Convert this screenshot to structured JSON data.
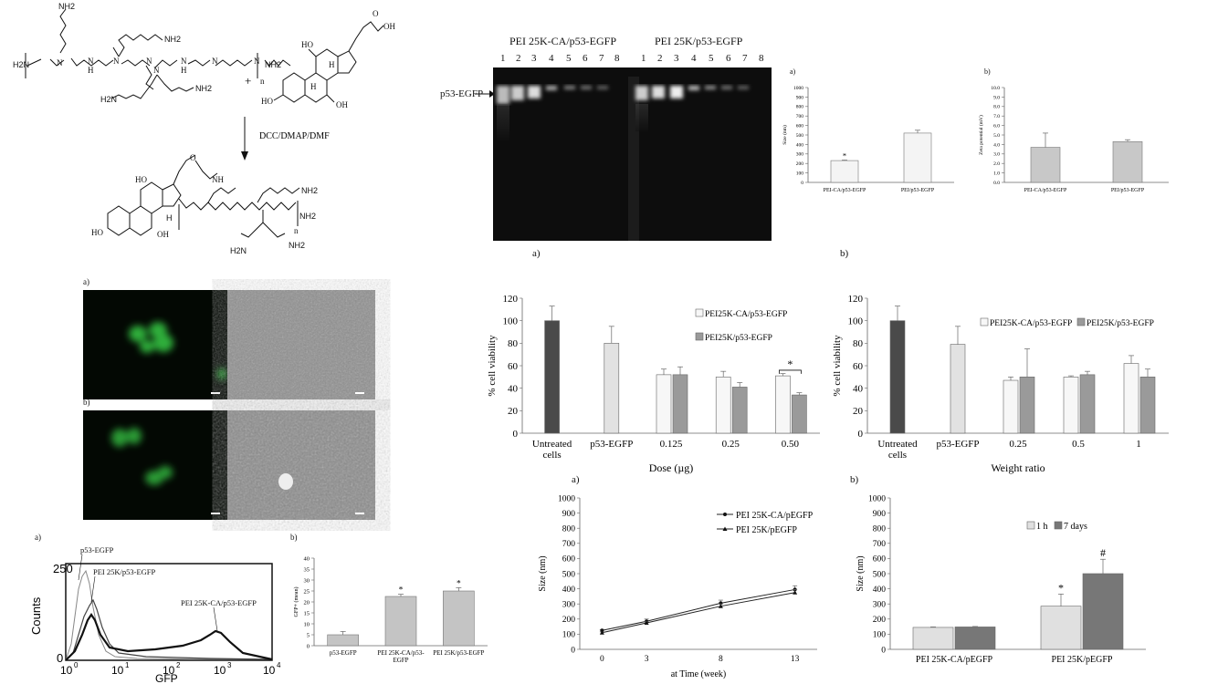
{
  "scheme": {
    "reagents": "DCC/DMAP/DMF",
    "plus": "+",
    "n": "n",
    "amine_top": "NH2",
    "amine_right": "NH2",
    "amine_left": "H2N",
    "acid": "OH",
    "hydroxyl": "HO",
    "nh": "NH"
  },
  "gel": {
    "label_group1": "PEI 25K-CA/p53-EGFP",
    "label_group2": "PEI 25K/p53-EGFP",
    "lanes_group1": [
      "1",
      "2",
      "3",
      "4",
      "5",
      "6",
      "7",
      "8"
    ],
    "lanes_group2": [
      "1",
      "2",
      "3",
      "4",
      "5",
      "6",
      "7",
      "8"
    ],
    "band_label": "p53-EGFP",
    "panel": "a)"
  },
  "microscopy": {
    "panel_a": "a)",
    "panel_b": "b)"
  },
  "flow": {
    "panel": "a)",
    "ylabel": "Counts",
    "xlabel": "GFP",
    "ytick": "250",
    "ytick0": "0",
    "labels": [
      "p53-EGFP",
      "PEI 25K/p53-EGFP",
      "PEI 25K-CA/p53-EGFP"
    ],
    "xticks": [
      "10",
      "10",
      "10",
      "10",
      "10"
    ],
    "xexp": [
      "0",
      "1",
      "2",
      "3",
      "4"
    ]
  },
  "panel_b_label": "b)",
  "panel_a_label": "a)",
  "chart_data": [
    {
      "type": "bar",
      "id": "gfp_mean",
      "panel": "b)",
      "ylabel": "GFP+ (mean)",
      "categories": [
        "p53-EGFP",
        "PEI 25K-CA/p53-EGFP",
        "PEI 25K/p53-EGFP"
      ],
      "values": [
        5,
        22.5,
        25
      ],
      "errors": [
        1.5,
        1,
        1.5
      ],
      "marks": [
        "",
        "*",
        "*"
      ],
      "yticks": [
        "0",
        "5",
        "10",
        "15",
        "20",
        "25",
        "30",
        "35",
        "40"
      ],
      "ylim": [
        0,
        40
      ]
    },
    {
      "type": "bar",
      "id": "size_nm",
      "panel": "a)",
      "ylabel": "Size (nm)",
      "categories": [
        "PEI-CA/p53-EGFP",
        "PEI/p53-EGFP"
      ],
      "values": [
        230,
        520
      ],
      "errors": [
        5,
        30
      ],
      "marks": [
        "*",
        ""
      ],
      "yticks": [
        "0",
        "100",
        "200",
        "300",
        "400",
        "500",
        "600",
        "700",
        "800",
        "900",
        "1000"
      ],
      "ylim": [
        0,
        1000
      ]
    },
    {
      "type": "bar",
      "id": "zeta",
      "panel": "b)",
      "ylabel": "Zeta potential (mV)",
      "categories": [
        "PEI-CA/p53-EGFP",
        "PEI/p53-EGFP"
      ],
      "values": [
        3.7,
        4.3
      ],
      "errors": [
        1.5,
        0.2
      ],
      "yticks": [
        "0.0",
        "1.0",
        "2.0",
        "3.0",
        "4.0",
        "5.0",
        "6.0",
        "7.0",
        "8.0",
        "9.0",
        "10.0"
      ],
      "ylim": [
        0,
        10
      ]
    },
    {
      "type": "bar",
      "id": "viability_dose",
      "panel": "a)",
      "ylabel": "% cell viability",
      "xlabel": "Dose (µg)",
      "categories": [
        "Untreated cells",
        "p53-EGFP",
        "0.125",
        "0.25",
        "0.50"
      ],
      "cat_lines": [
        [
          "Untreated",
          "cells"
        ],
        [
          "p53-EGFP"
        ],
        [
          "0.125"
        ],
        [
          "0.25"
        ],
        [
          "0.50"
        ]
      ],
      "single": [
        100,
        80,
        null,
        null,
        null
      ],
      "single_err": [
        13,
        15,
        0,
        0,
        0
      ],
      "series": [
        {
          "name": "PEI25K-CA/p53-EGFP",
          "values": [
            null,
            null,
            52,
            50,
            51
          ],
          "errors": [
            0,
            0,
            5,
            5,
            2
          ]
        },
        {
          "name": "PEI25K/p53-EGFP",
          "values": [
            null,
            null,
            52,
            41,
            34
          ],
          "errors": [
            0,
            0,
            7,
            4,
            2
          ]
        }
      ],
      "sig": "*",
      "yticks": [
        "0",
        "20",
        "40",
        "60",
        "80",
        "100",
        "120"
      ],
      "ylim": [
        0,
        120
      ]
    },
    {
      "type": "bar",
      "id": "viability_ratio",
      "panel": "b)",
      "ylabel": "% cell viability",
      "xlabel": "Weight ratio",
      "categories": [
        "Untreated cells",
        "p53-EGFP",
        "0.25",
        "0.5",
        "1"
      ],
      "cat_lines": [
        [
          "Untreated",
          "cells"
        ],
        [
          "p53-EGFP"
        ],
        [
          "0.25"
        ],
        [
          "0.5"
        ],
        [
          "1"
        ]
      ],
      "single": [
        100,
        79,
        null,
        null,
        null
      ],
      "single_err": [
        13,
        16,
        0,
        0,
        0
      ],
      "series": [
        {
          "name": "PEI25K-CA/p53-EGFP",
          "values": [
            null,
            null,
            47,
            50,
            62
          ],
          "errors": [
            0,
            0,
            3,
            1,
            7
          ]
        },
        {
          "name": "PEI25K/p53-EGFP",
          "values": [
            null,
            null,
            50,
            52,
            50
          ],
          "errors": [
            0,
            0,
            25,
            3,
            7
          ]
        }
      ],
      "yticks": [
        "0",
        "20",
        "40",
        "60",
        "80",
        "100",
        "120"
      ],
      "ylim": [
        0,
        120
      ]
    },
    {
      "type": "line",
      "id": "size_time",
      "ylabel": "Size (nm)",
      "xlabel": "at Time (week)",
      "x": [
        0,
        3,
        8,
        13
      ],
      "xticks": [
        "0",
        "3",
        "8",
        "13"
      ],
      "series": [
        {
          "name": "PEI 25K-CA/pEGFP",
          "values": [
            125,
            185,
            305,
            395
          ],
          "errors": [
            5,
            15,
            20,
            25
          ]
        },
        {
          "name": "PEI 25K/pEGFP",
          "values": [
            110,
            175,
            285,
            375
          ],
          "errors": [
            5,
            10,
            15,
            20
          ]
        }
      ],
      "yticks": [
        "0",
        "100",
        "200",
        "300",
        "400",
        "500",
        "600",
        "700",
        "800",
        "900",
        "1000"
      ],
      "ylim": [
        0,
        1000
      ]
    },
    {
      "type": "bar",
      "id": "size_stability",
      "panel": "b)",
      "ylabel": "Size (nm)",
      "categories": [
        "PEI 25K-CA/pEGFP",
        "PEI 25K/pEGFP"
      ],
      "series": [
        {
          "name": "1 h",
          "values": [
            145,
            285
          ],
          "errors": [
            3,
            80
          ]
        },
        {
          "name": "7 days",
          "values": [
            148,
            500
          ],
          "errors": [
            3,
            95
          ]
        }
      ],
      "marks": [
        [
          "",
          ""
        ],
        [
          "*",
          "#"
        ]
      ],
      "yticks": [
        "0",
        "100",
        "200",
        "300",
        "400",
        "500",
        "600",
        "700",
        "800",
        "900",
        "1000"
      ],
      "ylim": [
        0,
        1000
      ]
    }
  ]
}
